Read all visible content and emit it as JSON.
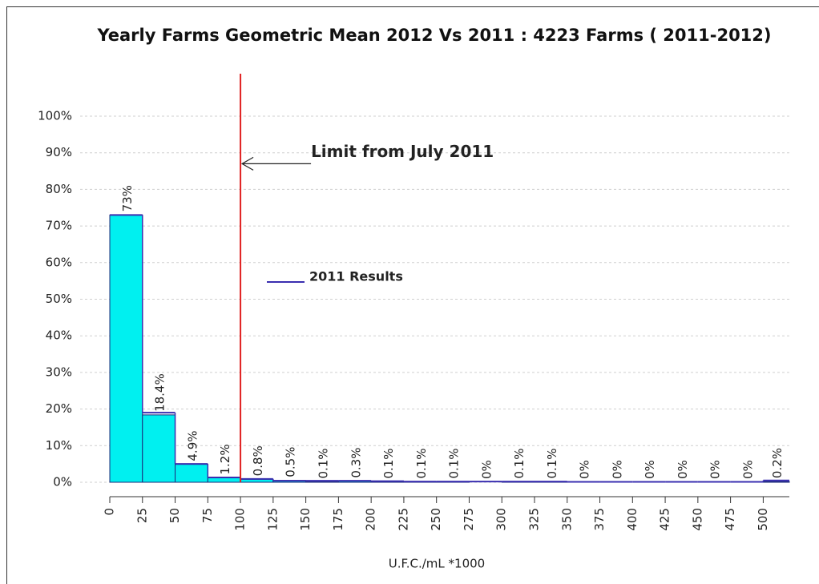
{
  "chart_data": {
    "type": "histogram",
    "title": "Yearly Farms Geometric Mean 2012 Vs 2011 : 4223  Farms ( 2011-2012)",
    "x_label": "U.F.C./mL *1000",
    "bins": [
      0,
      25,
      50,
      75,
      100,
      125,
      150,
      175,
      200,
      225,
      250,
      275,
      300,
      325,
      350,
      375,
      400,
      425,
      450,
      475,
      500,
      525
    ],
    "values": [
      73,
      18.4,
      4.9,
      1.2,
      0.8,
      0.5,
      0.1,
      0.3,
      0.1,
      0.1,
      0.1,
      0,
      0.1,
      0.1,
      0,
      0,
      0,
      0,
      0,
      0,
      0.2
    ],
    "value_labels": [
      "73%",
      "18.4%",
      "4.9%",
      "1.2%",
      "0.8%",
      "0.5%",
      "0.1%",
      "0.3%",
      "0.1%",
      "0.1%",
      "0.1%",
      "0%",
      "0.1%",
      "0.1%",
      "0%",
      "0%",
      "0%",
      "0%",
      "0%",
      "0%",
      "0.2%"
    ],
    "color": "#00f0f0",
    "series": [
      {
        "name": "2011 Results",
        "color": "#3a2fb0",
        "values": [
          73,
          19,
          5,
          1.3,
          0.9,
          0.4,
          0.4,
          0.4,
          0.3,
          0.2,
          0.2,
          0.2,
          0.2,
          0.2,
          0.1,
          0.1,
          0.1,
          0.1,
          0.1,
          0.1,
          0.5
        ]
      }
    ],
    "annotations": [
      {
        "text": "Limit from July 2011",
        "x": 100,
        "y": 87
      }
    ],
    "vline": {
      "x": 100,
      "color": "#e02020"
    },
    "xlim": [
      0,
      520
    ],
    "xticks": [
      0,
      25,
      50,
      75,
      100,
      125,
      150,
      175,
      200,
      225,
      250,
      275,
      300,
      325,
      350,
      375,
      400,
      425,
      450,
      475,
      500
    ],
    "ylim": [
      0,
      100
    ],
    "yticks": [
      {
        "value": 0,
        "label": "0%"
      },
      {
        "value": 10,
        "label": "10%"
      },
      {
        "value": 20,
        "label": "20%"
      },
      {
        "value": 30,
        "label": "30%"
      },
      {
        "value": 40,
        "label": "40%"
      },
      {
        "value": 50,
        "label": "50%"
      },
      {
        "value": 60,
        "label": "60%"
      },
      {
        "value": 70,
        "label": "70%"
      },
      {
        "value": 80,
        "label": "80%"
      },
      {
        "value": 90,
        "label": "90%"
      },
      {
        "value": 100,
        "label": "100%"
      }
    ],
    "grid": true
  }
}
